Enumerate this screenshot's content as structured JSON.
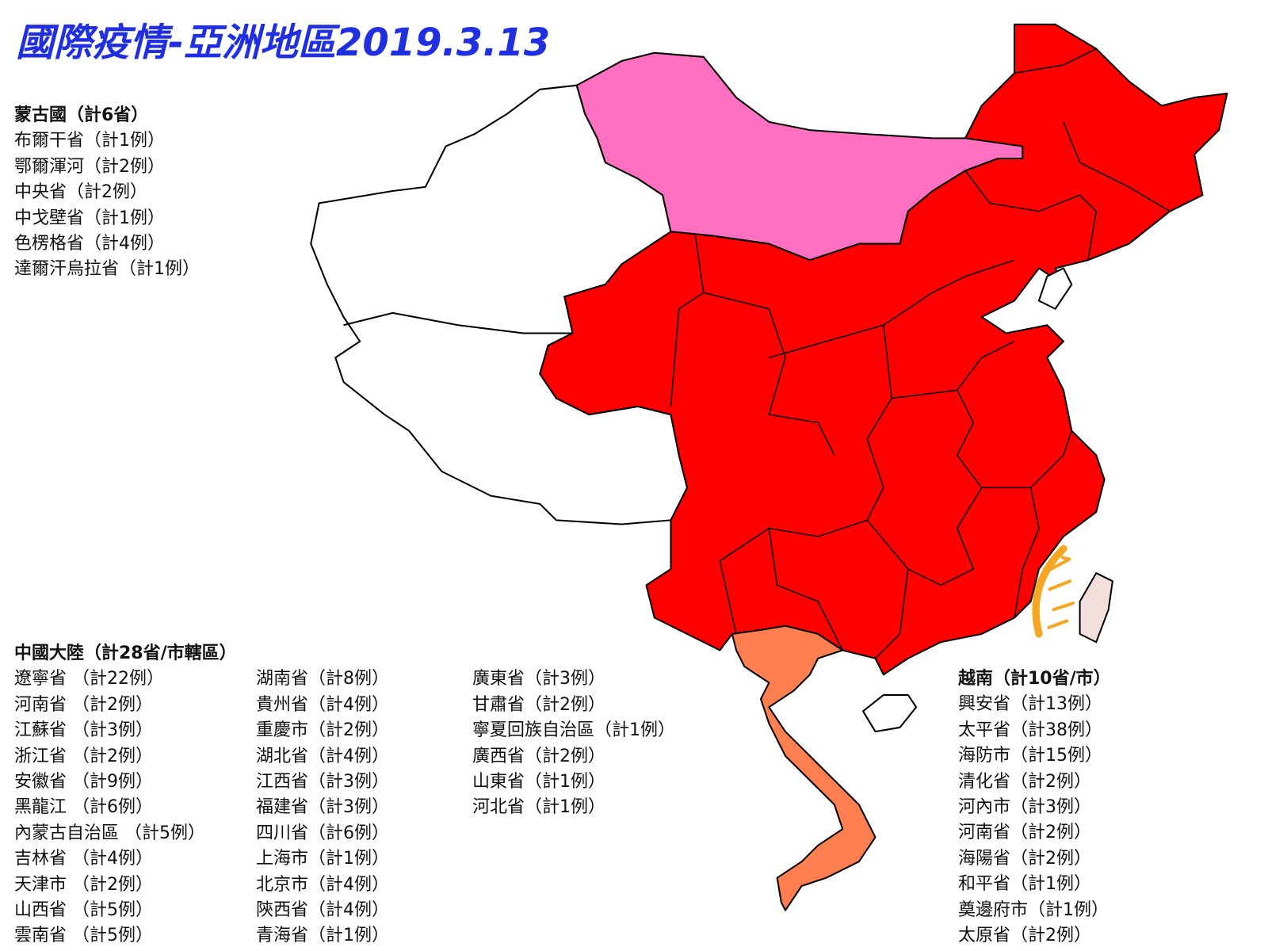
{
  "title": "國際疫情-亞洲地區2019.3.13",
  "mongolia": {
    "heading": "蒙古國（計6省）",
    "items": [
      "布爾干省（計1例）",
      "鄂爾渾河（計2例）",
      "中央省（計2例）",
      "中戈壁省（計1例）",
      "色楞格省（計4例）",
      "達爾汗烏拉省（計1例）"
    ]
  },
  "china": {
    "heading": "中國大陸（計28省/市轄區）",
    "columns": [
      [
        "遼寧省 （計22例）",
        "河南省 （計2例）",
        "江蘇省 （計3例）",
        "浙江省 （計2例）",
        "安徽省 （計9例）",
        "黑龍江 （計6例）",
        "內蒙古自治區 （計5例）",
        "吉林省 （計4例）",
        "天津市 （計2例）",
        "山西省 （計5例）",
        "雲南省 （計5例）"
      ],
      [
        "湖南省（計8例）",
        "貴州省（計4例）",
        "重慶市（計2例）",
        "湖北省（計4例）",
        "江西省（計3例）",
        "福建省（計3例）",
        "四川省（計6例）",
        "上海市（計1例）",
        "北京市（計4例）",
        "陝西省（計4例）",
        "青海省（計1例）"
      ],
      [
        "廣東省（計3例）",
        "甘肅省（計2例）",
        "寧夏回族自治區（計1例）",
        "廣西省（計2例）",
        "山東省（計1例）",
        "河北省（計1例）"
      ]
    ]
  },
  "vietnam": {
    "heading": "越南（計10省/市）",
    "items": [
      "興安省（計13例）",
      "太平省（計38例）",
      "海防市（計15例）",
      "清化省（計2例）",
      "河內市（計3例）",
      "河南省（計2例）",
      "海陽省（計2例）",
      "和平省（計1例）",
      "奠邊府市（計1例）",
      "太原省（計2例）"
    ]
  }
}
